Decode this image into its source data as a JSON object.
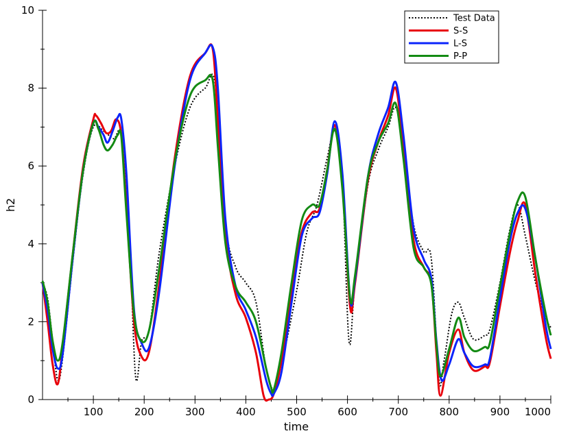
{
  "chart_data": {
    "type": "line",
    "xlabel": "time",
    "ylabel": "h2",
    "xlim": [
      0,
      1000
    ],
    "ylim": [
      0,
      10
    ],
    "x_ticks": [
      100,
      200,
      300,
      400,
      500,
      600,
      700,
      800,
      900,
      1000
    ],
    "y_ticks": [
      0,
      2,
      4,
      6,
      8,
      10
    ],
    "grid": false,
    "legend_position": "top-right",
    "series": [
      {
        "name": "Test Data",
        "color": "#000000",
        "style": "dotted",
        "x": [
          0,
          10,
          20,
          30,
          40,
          60,
          80,
          100,
          120,
          140,
          155,
          170,
          183,
          195,
          210,
          230,
          260,
          290,
          320,
          340,
          360,
          380,
          400,
          420,
          440,
          455,
          475,
          500,
          520,
          540,
          560,
          575,
          590,
          603,
          615,
          640,
          660,
          680,
          695,
          710,
          730,
          750,
          765,
          780,
          790,
          805,
          818,
          830,
          848,
          870,
          880,
          900,
          920,
          935,
          950,
          970,
          990,
          1000
        ],
        "y": [
          3.0,
          2.6,
          1.5,
          0.5,
          1.1,
          3.6,
          5.8,
          7.0,
          6.9,
          6.7,
          6.8,
          4.6,
          0.6,
          1.5,
          1.8,
          3.8,
          6.0,
          7.5,
          8.0,
          8.1,
          4.5,
          3.4,
          3.0,
          2.5,
          0.8,
          0.3,
          1.2,
          2.8,
          4.3,
          5.0,
          6.2,
          6.9,
          5.6,
          1.5,
          3.0,
          5.5,
          6.4,
          7.0,
          7.5,
          6.5,
          4.5,
          3.8,
          3.6,
          0.5,
          1.0,
          2.2,
          2.5,
          2.1,
          1.55,
          1.65,
          1.8,
          3.0,
          4.4,
          5.0,
          4.2,
          3.0,
          2.1,
          1.85
        ]
      },
      {
        "name": "S-S",
        "color": "#e8000b",
        "style": "solid",
        "x": [
          0,
          10,
          20,
          30,
          40,
          60,
          80,
          100,
          105,
          115,
          125,
          135,
          145,
          155,
          165,
          180,
          195,
          210,
          230,
          260,
          290,
          320,
          335,
          345,
          360,
          380,
          400,
          420,
          435,
          445,
          455,
          470,
          490,
          510,
          530,
          545,
          560,
          575,
          590,
          605,
          615,
          640,
          660,
          680,
          695,
          710,
          730,
          750,
          765,
          775,
          783,
          800,
          818,
          830,
          848,
          870,
          880,
          900,
          920,
          935,
          950,
          970,
          990,
          1000
        ],
        "y": [
          3.0,
          2.0,
          0.9,
          0.4,
          1.4,
          3.8,
          6.0,
          7.2,
          7.3,
          7.1,
          6.85,
          6.9,
          7.2,
          6.8,
          5.0,
          2.0,
          1.1,
          1.25,
          3.0,
          6.2,
          8.3,
          8.9,
          9.0,
          7.2,
          4.2,
          2.7,
          2.1,
          1.2,
          0.1,
          0.0,
          0.15,
          1.0,
          2.8,
          4.3,
          4.8,
          4.9,
          5.9,
          7.05,
          5.6,
          2.4,
          3.0,
          5.6,
          6.6,
          7.3,
          8.0,
          6.5,
          4.1,
          3.4,
          3.0,
          1.2,
          0.1,
          1.2,
          1.8,
          1.2,
          0.75,
          0.85,
          0.95,
          2.4,
          3.8,
          4.6,
          5.0,
          3.2,
          1.6,
          1.05
        ]
      },
      {
        "name": "L-S",
        "color": "#0b24fb",
        "style": "solid",
        "x": [
          0,
          10,
          20,
          30,
          40,
          60,
          80,
          100,
          110,
          120,
          128,
          138,
          148,
          155,
          165,
          180,
          195,
          210,
          230,
          260,
          290,
          320,
          335,
          345,
          360,
          380,
          400,
          420,
          440,
          450,
          455,
          470,
          490,
          510,
          530,
          545,
          560,
          575,
          590,
          605,
          615,
          640,
          660,
          680,
          695,
          710,
          730,
          750,
          765,
          775,
          785,
          800,
          818,
          830,
          848,
          870,
          880,
          900,
          920,
          935,
          950,
          970,
          990,
          1000
        ],
        "y": [
          3.0,
          2.3,
          1.3,
          0.8,
          1.2,
          3.7,
          5.9,
          7.1,
          7.0,
          6.8,
          6.6,
          6.9,
          7.25,
          7.2,
          5.8,
          2.3,
          1.45,
          1.35,
          2.8,
          6.0,
          8.2,
          8.9,
          9.05,
          8.0,
          4.6,
          2.9,
          2.3,
          1.6,
          0.5,
          0.15,
          0.15,
          0.7,
          2.5,
          4.2,
          4.65,
          4.8,
          5.8,
          7.15,
          5.8,
          2.6,
          3.1,
          5.7,
          6.8,
          7.5,
          8.15,
          6.8,
          4.4,
          3.6,
          3.1,
          1.5,
          0.5,
          0.9,
          1.55,
          1.2,
          0.85,
          0.9,
          1.05,
          2.6,
          4.1,
          4.8,
          4.9,
          3.6,
          1.9,
          1.3
        ]
      },
      {
        "name": "P-P",
        "color": "#138a13",
        "style": "solid",
        "x": [
          0,
          10,
          20,
          30,
          40,
          60,
          80,
          100,
          110,
          120,
          128,
          138,
          148,
          155,
          165,
          180,
          195,
          210,
          230,
          260,
          290,
          320,
          335,
          345,
          360,
          380,
          400,
          420,
          440,
          450,
          455,
          470,
          490,
          510,
          530,
          545,
          560,
          575,
          590,
          605,
          615,
          640,
          660,
          680,
          695,
          710,
          730,
          750,
          765,
          775,
          783,
          800,
          818,
          830,
          848,
          870,
          880,
          900,
          920,
          935,
          950,
          970,
          990,
          1000
        ],
        "y": [
          3.05,
          2.5,
          1.5,
          1.0,
          1.5,
          3.8,
          5.9,
          7.1,
          6.95,
          6.55,
          6.4,
          6.55,
          6.8,
          6.75,
          4.8,
          2.2,
          1.5,
          1.8,
          3.4,
          6.1,
          7.8,
          8.2,
          8.2,
          6.5,
          4.0,
          2.9,
          2.5,
          2.0,
          0.8,
          0.3,
          0.25,
          1.2,
          3.0,
          4.6,
          5.0,
          5.0,
          5.9,
          6.95,
          5.4,
          2.6,
          3.2,
          5.7,
          6.6,
          7.1,
          7.6,
          6.2,
          3.9,
          3.4,
          2.95,
          1.4,
          0.6,
          1.3,
          2.1,
          1.6,
          1.25,
          1.35,
          1.45,
          2.9,
          4.3,
          5.1,
          5.2,
          3.6,
          2.2,
          1.65
        ]
      }
    ]
  }
}
